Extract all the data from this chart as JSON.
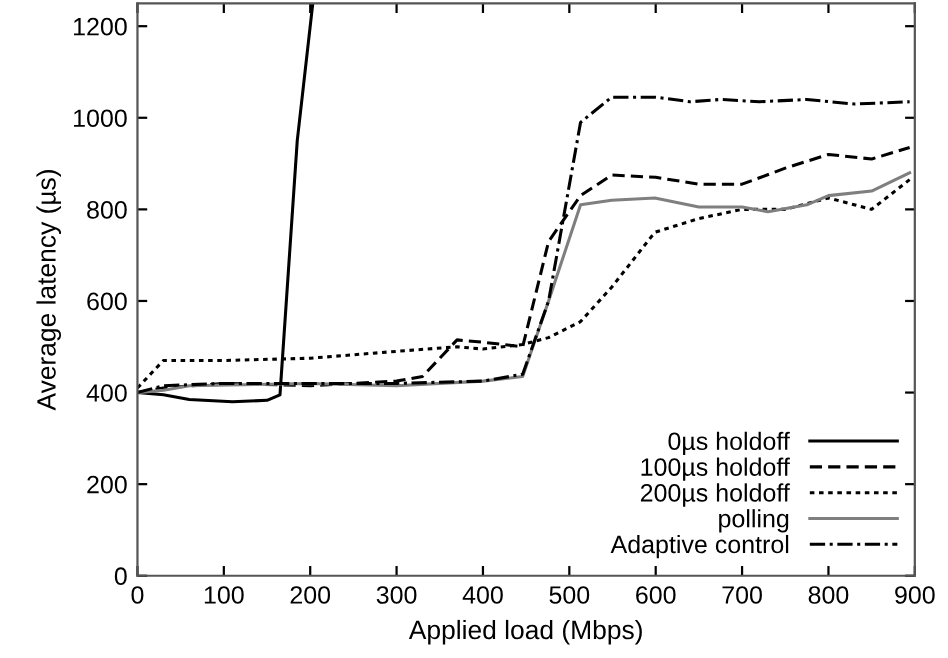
{
  "chart_data": {
    "type": "line",
    "xlabel": "Applied load (Mbps)",
    "ylabel": "Average latency (µs)",
    "xlim": [
      0,
      900
    ],
    "ylim": [
      0,
      1250
    ],
    "xticks": [
      0,
      100,
      200,
      300,
      400,
      500,
      600,
      700,
      800,
      900
    ],
    "yticks": [
      0,
      200,
      400,
      600,
      800,
      1000,
      1200
    ],
    "grid": false,
    "legend": "bottom right",
    "marker": "none",
    "series": [
      {
        "name": "0µs holdoff",
        "color": "#000000",
        "line_style": "solid",
        "x": [
          0,
          30,
          60,
          110,
          150,
          165,
          185,
          203
        ],
        "values": [
          400,
          395,
          385,
          380,
          383,
          395,
          950,
          1250
        ]
      },
      {
        "name": "100µs holdoff",
        "color": "#000000",
        "line_style": "dashed",
        "x": [
          0,
          30,
          100,
          200,
          300,
          330,
          370,
          400,
          446,
          476,
          513,
          549,
          600,
          650,
          700,
          750,
          800,
          850,
          894
        ],
        "values": [
          400,
          410,
          420,
          415,
          425,
          435,
          515,
          510,
          500,
          730,
          830,
          875,
          870,
          855,
          855,
          890,
          920,
          910,
          935
        ]
      },
      {
        "name": "200µs holdoff",
        "color": "#000000",
        "line_style": "dotted",
        "x": [
          0,
          30,
          100,
          200,
          300,
          370,
          400,
          446,
          476,
          513,
          549,
          599,
          650,
          700,
          750,
          800,
          850,
          894
        ],
        "values": [
          410,
          470,
          470,
          475,
          490,
          500,
          495,
          505,
          520,
          555,
          630,
          750,
          780,
          800,
          800,
          825,
          800,
          865
        ]
      },
      {
        "name": "polling",
        "color": "#7f7f7f",
        "line_style": "solid",
        "x": [
          0,
          30,
          60,
          200,
          300,
          400,
          446,
          476,
          513,
          549,
          599,
          650,
          700,
          730,
          775,
          800,
          850,
          894
        ],
        "values": [
          400,
          405,
          415,
          420,
          415,
          425,
          435,
          600,
          810,
          820,
          825,
          805,
          805,
          795,
          810,
          830,
          840,
          880
        ]
      },
      {
        "name": "Adaptive control",
        "color": "#000000",
        "line_style": "dashdot",
        "x": [
          0,
          30,
          100,
          200,
          300,
          400,
          446,
          476,
          513,
          549,
          600,
          640,
          675,
          720,
          775,
          830,
          894
        ],
        "values": [
          400,
          415,
          420,
          420,
          420,
          425,
          440,
          600,
          990,
          1045,
          1045,
          1035,
          1040,
          1035,
          1040,
          1030,
          1035
        ]
      }
    ]
  }
}
